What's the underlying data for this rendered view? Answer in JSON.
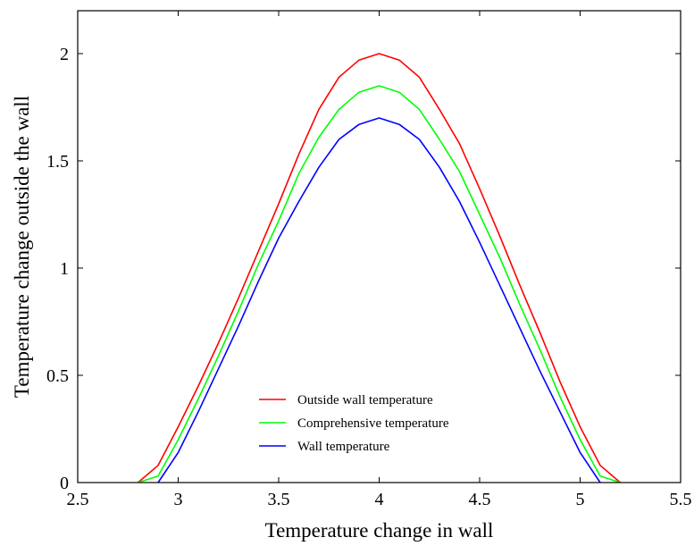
{
  "chart_data": {
    "type": "line",
    "title": "",
    "xlabel": "Temperature change in wall",
    "ylabel": "Temperature change outside the wall",
    "xlim": [
      2.5,
      5.5
    ],
    "ylim": [
      0,
      2.2
    ],
    "xticks": [
      2.5,
      3,
      3.5,
      4,
      4.5,
      5,
      5.5
    ],
    "xtick_labels": [
      "2.5",
      "3",
      "3.5",
      "4",
      "4.5",
      "5",
      "5.5"
    ],
    "yticks": [
      0,
      0.5,
      1,
      1.5,
      2
    ],
    "ytick_labels": [
      "0",
      "0.5",
      "1",
      "1.5",
      "2"
    ],
    "grid": false,
    "legend_position": "bottom-left",
    "series": [
      {
        "name": "Outside wall temperature",
        "color": "#ff0000",
        "points": [
          [
            2.8,
            0
          ],
          [
            2.9,
            0.08
          ],
          [
            3.0,
            0.26
          ],
          [
            3.1,
            0.45
          ],
          [
            3.2,
            0.65
          ],
          [
            3.3,
            0.86
          ],
          [
            3.4,
            1.08
          ],
          [
            3.5,
            1.3
          ],
          [
            3.6,
            1.53
          ],
          [
            3.7,
            1.74
          ],
          [
            3.8,
            1.89
          ],
          [
            3.9,
            1.97
          ],
          [
            4.0,
            2.0
          ],
          [
            4.1,
            1.97
          ],
          [
            4.2,
            1.89
          ],
          [
            4.3,
            1.74
          ],
          [
            4.4,
            1.58
          ],
          [
            4.5,
            1.37
          ],
          [
            4.6,
            1.15
          ],
          [
            4.7,
            0.92
          ],
          [
            4.8,
            0.7
          ],
          [
            4.9,
            0.47
          ],
          [
            5.0,
            0.26
          ],
          [
            5.1,
            0.08
          ],
          [
            5.2,
            0
          ]
        ]
      },
      {
        "name": "Comprehensive temperature",
        "color": "#00ff00",
        "points": [
          [
            2.8,
            0
          ],
          [
            2.9,
            0.03
          ],
          [
            3.0,
            0.2
          ],
          [
            3.1,
            0.39
          ],
          [
            3.2,
            0.59
          ],
          [
            3.3,
            0.8
          ],
          [
            3.4,
            1.02
          ],
          [
            3.5,
            1.22
          ],
          [
            3.6,
            1.44
          ],
          [
            3.7,
            1.61
          ],
          [
            3.8,
            1.74
          ],
          [
            3.9,
            1.82
          ],
          [
            4.0,
            1.85
          ],
          [
            4.1,
            1.82
          ],
          [
            4.2,
            1.74
          ],
          [
            4.3,
            1.6
          ],
          [
            4.4,
            1.45
          ],
          [
            4.5,
            1.25
          ],
          [
            4.6,
            1.05
          ],
          [
            4.7,
            0.83
          ],
          [
            4.8,
            0.62
          ],
          [
            4.9,
            0.4
          ],
          [
            5.0,
            0.2
          ],
          [
            5.1,
            0.03
          ],
          [
            5.2,
            0
          ]
        ]
      },
      {
        "name": "Wall temperature",
        "color": "#0000ff",
        "points": [
          [
            2.9,
            0
          ],
          [
            3.0,
            0.14
          ],
          [
            3.1,
            0.33
          ],
          [
            3.2,
            0.53
          ],
          [
            3.3,
            0.73
          ],
          [
            3.4,
            0.94
          ],
          [
            3.5,
            1.14
          ],
          [
            3.6,
            1.31
          ],
          [
            3.7,
            1.47
          ],
          [
            3.8,
            1.6
          ],
          [
            3.9,
            1.67
          ],
          [
            4.0,
            1.7
          ],
          [
            4.1,
            1.67
          ],
          [
            4.2,
            1.6
          ],
          [
            4.3,
            1.47
          ],
          [
            4.4,
            1.31
          ],
          [
            4.5,
            1.12
          ],
          [
            4.6,
            0.92
          ],
          [
            4.7,
            0.72
          ],
          [
            4.8,
            0.52
          ],
          [
            4.9,
            0.33
          ],
          [
            5.0,
            0.14
          ],
          [
            5.1,
            0
          ]
        ]
      }
    ]
  }
}
